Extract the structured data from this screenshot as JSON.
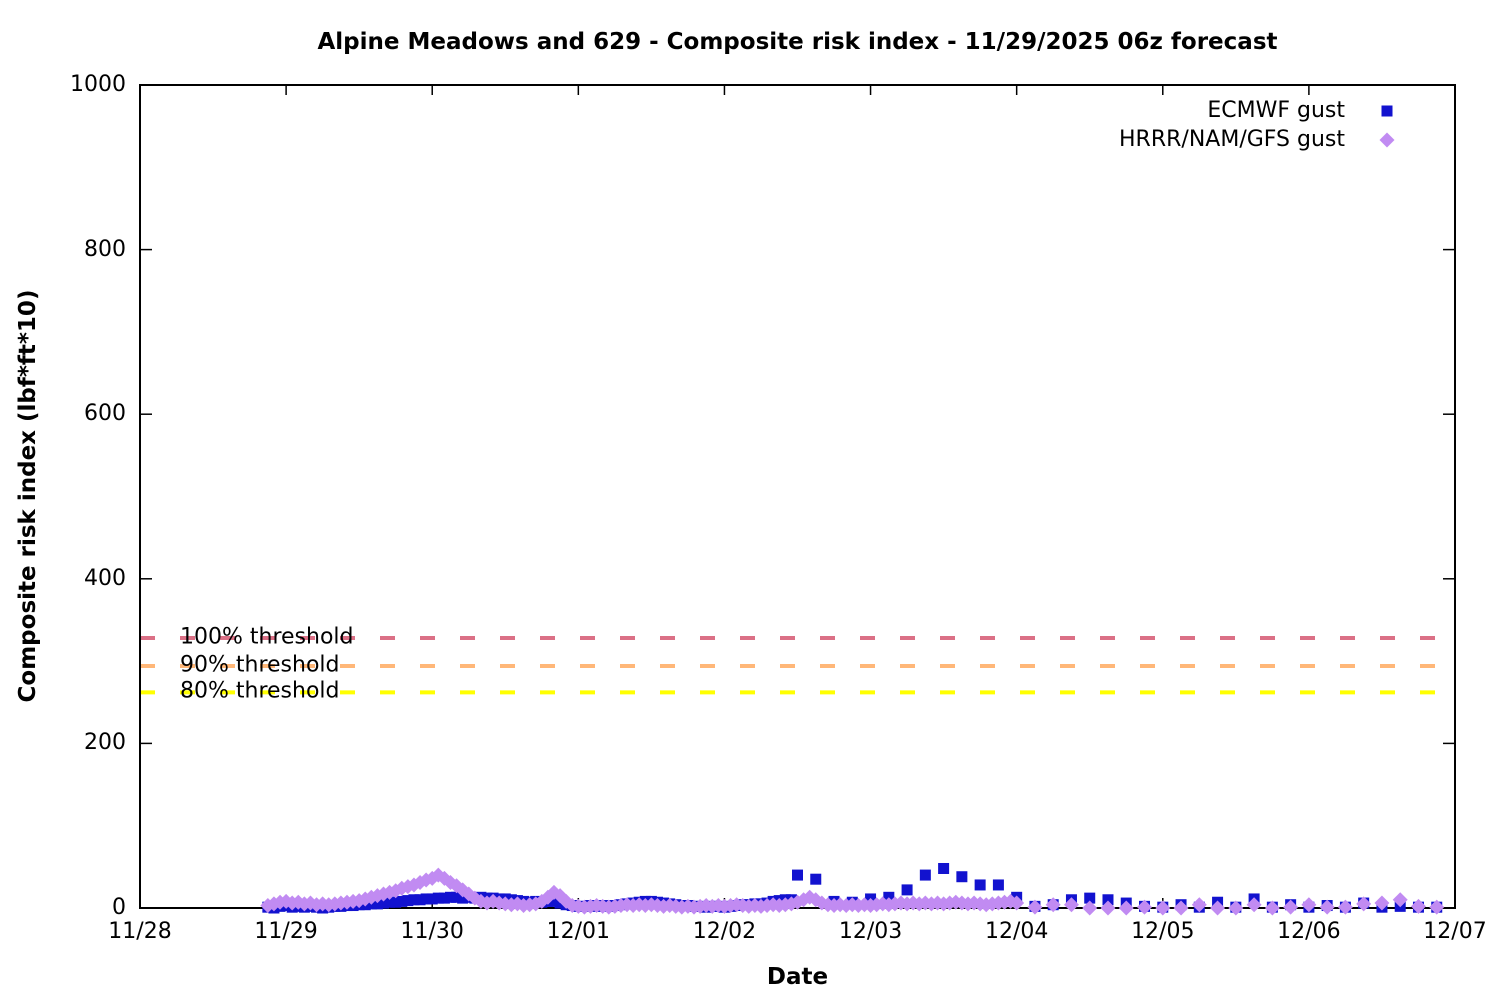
{
  "chart_data": {
    "type": "scatter",
    "title": "Alpine Meadows and 629 - Composite risk index - 11/29/2025 06z forecast",
    "xlabel": "Date",
    "ylabel": "Composite risk index (lbf*ft*10)",
    "x_ticks": [
      "11/28",
      "11/29",
      "11/30",
      "12/01",
      "12/02",
      "12/03",
      "12/04",
      "12/05",
      "12/06",
      "12/07"
    ],
    "y_ticks": [
      0,
      200,
      400,
      600,
      800,
      1000
    ],
    "ylim": [
      0,
      1000
    ],
    "xlim_days": [
      0,
      9
    ],
    "grid": false,
    "legend_position": "top-right-inside",
    "x_unit": "days after 11/28 00:00",
    "thresholds": [
      {
        "label": "100% threshold",
        "value": 328,
        "color": "#DB7086"
      },
      {
        "label": "90% threshold",
        "value": 294,
        "color": "#FFB778"
      },
      {
        "label": "80% threshold",
        "value": 262,
        "color": "#FFFF00"
      }
    ],
    "series": [
      {
        "name": "ECMWF gust",
        "marker": "square",
        "color": "#1212CF",
        "segments": [
          {
            "start_day": 0.875,
            "step_days": 0.0416667,
            "values": [
              1,
              0,
              2,
              3,
              1,
              2,
              1,
              2,
              1,
              0,
              1,
              2,
              2,
              3,
              3,
              4,
              4,
              5,
              5,
              6,
              7,
              7,
              8,
              9,
              10,
              10,
              11,
              11,
              12,
              12,
              13,
              13,
              12,
              13,
              12,
              13,
              12,
              12,
              11,
              11,
              10,
              9,
              8,
              7,
              8,
              7,
              8,
              8,
              6,
              4,
              3,
              2,
              2,
              3,
              2,
              3,
              2,
              3,
              4,
              5,
              6,
              7,
              8,
              8,
              7,
              6,
              5,
              4,
              3,
              3,
              2,
              2,
              1,
              2,
              2,
              1,
              2,
              3,
              4,
              4,
              5,
              5,
              6,
              8,
              9,
              10,
              10
            ]
          },
          {
            "start_day": 4.5,
            "step_days": 0.125,
            "values": [
              40,
              35,
              8,
              7,
              11,
              13,
              22,
              40,
              48,
              38,
              28,
              28,
              13,
              2,
              4,
              10,
              12,
              10,
              6,
              2,
              1,
              4,
              1,
              7,
              1,
              11,
              1,
              4,
              1,
              3,
              1,
              6,
              1,
              2,
              1,
              1
            ]
          }
        ]
      },
      {
        "name": "HRRR/NAM/GFS gust",
        "marker": "diamond",
        "color": "#C18BF2",
        "segments": [
          {
            "start_day": 0.875,
            "step_days": 0.0416667,
            "values": [
              3,
              5,
              7,
              8,
              6,
              7,
              5,
              6,
              4,
              5,
              4,
              5,
              6,
              7,
              8,
              9,
              11,
              13,
              15,
              17,
              19,
              21,
              24,
              26,
              28,
              31,
              34,
              36,
              40,
              36,
              31,
              27,
              22,
              17,
              12,
              8,
              6,
              8,
              6,
              5,
              4,
              5,
              3,
              4,
              5,
              8,
              13,
              19,
              15,
              8,
              3,
              2,
              1,
              2,
              3,
              2,
              1,
              2,
              3,
              4,
              3,
              4,
              3,
              4,
              3,
              2,
              3,
              2,
              1,
              2,
              1,
              2,
              3,
              2,
              3,
              2,
              3,
              4,
              3,
              2,
              3,
              2,
              3,
              4,
              3,
              4,
              5,
              7,
              10,
              13,
              10,
              6,
              4,
              3,
              4,
              3,
              4,
              3,
              4,
              3,
              4,
              5,
              4,
              5,
              6,
              5,
              6,
              5,
              6,
              5,
              6,
              5,
              6,
              7,
              6,
              5,
              6,
              5,
              4,
              5,
              6,
              7,
              8,
              6
            ]
          },
          {
            "start_day": 6.125,
            "step_days": 0.125,
            "values": [
              1,
              4,
              4,
              0,
              0,
              0,
              1,
              0,
              0,
              4,
              0,
              0,
              4,
              0,
              1,
              4,
              1,
              1,
              5,
              6,
              10,
              2,
              1
            ]
          }
        ]
      }
    ]
  }
}
